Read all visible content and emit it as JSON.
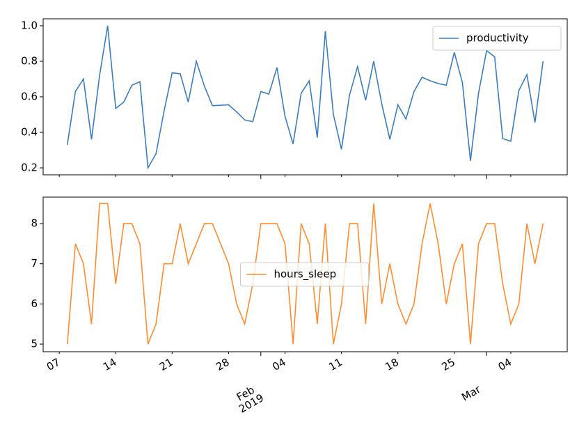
{
  "chart_data": [
    {
      "type": "line",
      "x": [
        "2019-01-08",
        "2019-01-09",
        "2019-01-10",
        "2019-01-11",
        "2019-01-12",
        "2019-01-13",
        "2019-01-14",
        "2019-01-15",
        "2019-01-16",
        "2019-01-17",
        "2019-01-18",
        "2019-01-19",
        "2019-01-20",
        "2019-01-21",
        "2019-01-22",
        "2019-01-23",
        "2019-01-24",
        "2019-01-25",
        "2019-01-26",
        "2019-01-28",
        "2019-01-29",
        "2019-01-30",
        "2019-01-31",
        "2019-02-01",
        "2019-02-02",
        "2019-02-03",
        "2019-02-04",
        "2019-02-05",
        "2019-02-06",
        "2019-02-07",
        "2019-02-08",
        "2019-02-09",
        "2019-02-10",
        "2019-02-11",
        "2019-02-12",
        "2019-02-13",
        "2019-02-14",
        "2019-02-15",
        "2019-02-16",
        "2019-02-17",
        "2019-02-18",
        "2019-02-19",
        "2019-02-20",
        "2019-02-21",
        "2019-02-22",
        "2019-02-23",
        "2019-02-24",
        "2019-02-25",
        "2019-02-26",
        "2019-02-27",
        "2019-02-28",
        "2019-03-01",
        "2019-03-02",
        "2019-03-03",
        "2019-03-04",
        "2019-03-05",
        "2019-03-06",
        "2019-03-07",
        "2019-03-08"
      ],
      "series": [
        {
          "name": "productivity",
          "color": "#3a7dbf",
          "values": [
            0.33,
            0.63,
            0.7,
            0.36,
            0.72,
            1.0,
            0.535,
            0.57,
            0.665,
            0.685,
            0.2,
            0.28,
            0.52,
            0.735,
            0.73,
            0.57,
            0.8,
            0.66,
            0.55,
            0.555,
            0.515,
            0.47,
            0.46,
            0.63,
            0.615,
            0.765,
            0.49,
            0.335,
            0.62,
            0.69,
            0.37,
            0.97,
            0.5,
            0.305,
            0.61,
            0.77,
            0.58,
            0.8,
            0.56,
            0.36,
            0.555,
            0.475,
            0.63,
            0.71,
            0.69,
            0.675,
            0.665,
            0.85,
            0.68,
            0.24,
            0.62,
            0.86,
            0.825,
            0.365,
            0.35,
            0.635,
            0.725,
            0.455,
            0.8
          ]
        }
      ],
      "xlim": [
        "2019-01-05",
        "2019-03-11"
      ],
      "ylim": [
        0.161,
        1.039
      ],
      "yticks": [
        0.2,
        0.4,
        0.6,
        0.8,
        {
          "value": 1,
          "label": "1.0"
        }
      ],
      "legend": "upper right"
    },
    {
      "type": "line",
      "x": [
        "2019-01-08",
        "2019-01-09",
        "2019-01-10",
        "2019-01-11",
        "2019-01-12",
        "2019-01-13",
        "2019-01-14",
        "2019-01-15",
        "2019-01-16",
        "2019-01-17",
        "2019-01-18",
        "2019-01-19",
        "2019-01-20",
        "2019-01-21",
        "2019-01-22",
        "2019-01-23",
        "2019-01-24",
        "2019-01-25",
        "2019-01-26",
        "2019-01-28",
        "2019-01-29",
        "2019-01-30",
        "2019-01-31",
        "2019-02-01",
        "2019-02-02",
        "2019-02-03",
        "2019-02-04",
        "2019-02-05",
        "2019-02-06",
        "2019-02-07",
        "2019-02-08",
        "2019-02-09",
        "2019-02-10",
        "2019-02-11",
        "2019-02-12",
        "2019-02-13",
        "2019-02-14",
        "2019-02-15",
        "2019-02-16",
        "2019-02-17",
        "2019-02-18",
        "2019-02-19",
        "2019-02-20",
        "2019-02-21",
        "2019-02-22",
        "2019-02-23",
        "2019-02-24",
        "2019-02-25",
        "2019-02-26",
        "2019-02-27",
        "2019-02-28",
        "2019-03-01",
        "2019-03-02",
        "2019-03-03",
        "2019-03-04",
        "2019-03-05",
        "2019-03-06",
        "2019-03-07",
        "2019-03-08"
      ],
      "series": [
        {
          "name": "hours_sleep",
          "color": "#ff8c2e",
          "values": [
            5,
            7.5,
            7,
            5.5,
            8.5,
            8.5,
            6.5,
            8,
            8,
            7.5,
            5,
            5.5,
            7,
            7,
            8,
            7,
            7.5,
            8,
            8,
            7,
            6,
            5.5,
            6.5,
            8,
            8,
            8,
            7.5,
            5,
            8,
            7.5,
            5.5,
            8,
            5,
            6,
            8,
            8,
            5.5,
            8.5,
            6,
            7,
            6,
            5.5,
            6,
            7.5,
            8.5,
            7.5,
            6,
            7,
            7.5,
            5,
            7.5,
            8,
            8,
            6.5,
            5.5,
            6,
            8,
            7,
            8
          ]
        }
      ],
      "xlim": [
        "2019-01-05",
        "2019-03-11"
      ],
      "xticks": [
        {
          "value": "2019-01-07",
          "label": "07"
        },
        {
          "value": "2019-01-14",
          "label": "14"
        },
        {
          "value": "2019-01-21",
          "label": "21"
        },
        {
          "value": "2019-01-28",
          "label": "28"
        },
        {
          "value": "2019-02-01",
          "label": "Feb\n2019"
        },
        {
          "value": "2019-02-04",
          "label": "04"
        },
        {
          "value": "2019-02-11",
          "label": "11"
        },
        {
          "value": "2019-02-18",
          "label": "18"
        },
        {
          "value": "2019-02-25",
          "label": "25"
        },
        {
          "value": "2019-03-01",
          "label": "Mar"
        },
        {
          "value": "2019-03-04",
          "label": "04"
        }
      ],
      "ylim": [
        4.81,
        8.66
      ],
      "yticks": [
        5,
        6,
        7,
        8
      ],
      "legend": "center"
    }
  ]
}
